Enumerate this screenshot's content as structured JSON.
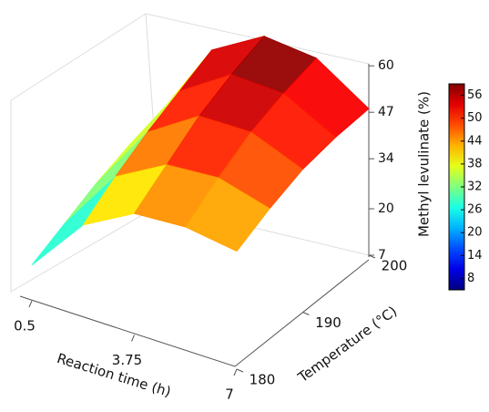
{
  "chart_data": {
    "type": "surface3d",
    "x_label": "Reaction time (h)",
    "y_label": "Temperature (°C)",
    "z_label": "Methyl levulinate  (%)",
    "x": [
      0.5,
      2.125,
      3.75,
      5.375,
      7
    ],
    "y": [
      180,
      185,
      190,
      195,
      200
    ],
    "z": [
      [
        17,
        33,
        41,
        42,
        40
      ],
      [
        21,
        39,
        47,
        48,
        44
      ],
      [
        25,
        44,
        53,
        53,
        47
      ],
      [
        28,
        48,
        57,
        56,
        48
      ],
      [
        30,
        52,
        60,
        58,
        48
      ]
    ],
    "xlim": [
      0.5,
      7
    ],
    "xticks": [
      0.5,
      3.75,
      7
    ],
    "ylim": [
      180,
      200
    ],
    "yticks": [
      180,
      190,
      200
    ],
    "zlim": [
      7,
      60
    ],
    "zticks": [
      7,
      20,
      34,
      47,
      60
    ],
    "colormap": "jet",
    "clim": [
      5,
      59
    ],
    "colorbar_ticks": [
      8,
      14,
      20,
      26,
      32,
      38,
      44,
      50,
      56
    ]
  }
}
